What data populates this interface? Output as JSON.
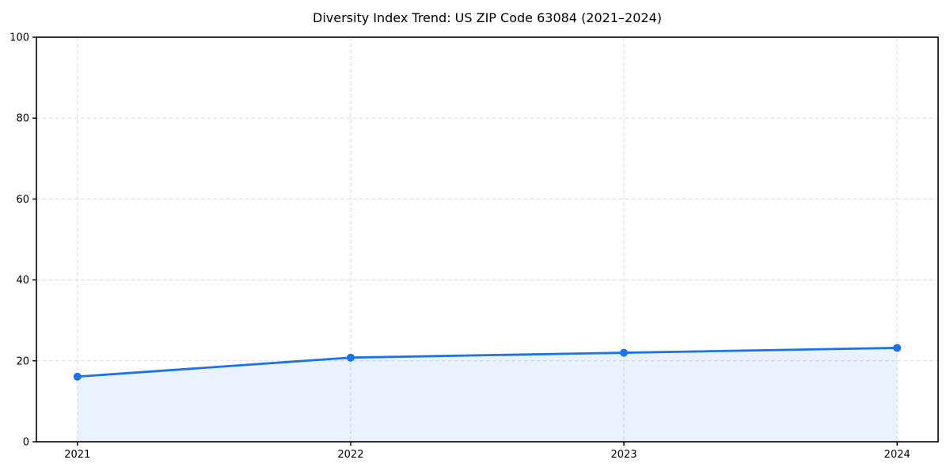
{
  "chart_data": {
    "type": "line",
    "title": "Diversity Index Trend: US ZIP Code 63084 (2021–2024)",
    "x": [
      "2021",
      "2022",
      "2023",
      "2024"
    ],
    "series": [
      {
        "name": "Diversity Index",
        "values": [
          16.1,
          20.8,
          22.0,
          23.2
        ]
      }
    ],
    "xlabel": "",
    "ylabel": "",
    "ylim": [
      0,
      100
    ],
    "yticks": [
      0,
      20,
      40,
      60,
      80,
      100
    ],
    "grid": true,
    "grid_style": "dashed",
    "legend_position": "none",
    "area_fill": true,
    "marker": "circle",
    "colors": {
      "line": "#1a73e8",
      "marker": "#1a73e8",
      "area": "rgba(26,115,232,0.09)",
      "grid": "#dcdcdc",
      "spine": "#000000",
      "tick_text": "#000000",
      "background": "#ffffff"
    }
  }
}
